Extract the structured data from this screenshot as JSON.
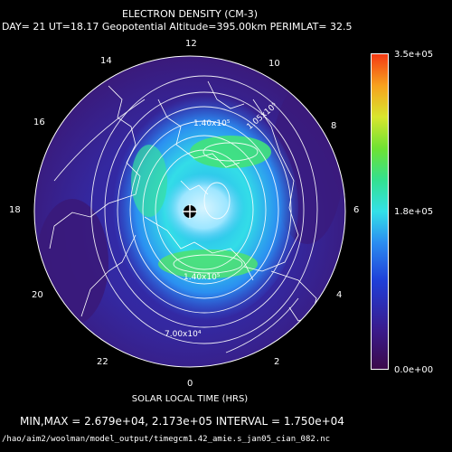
{
  "title": "ELECTRON DENSITY (CM-3)",
  "subtitle": "DAY= 21 UT=18.17 Geopotential Altitude=395.00km PERIMLAT= 32.5",
  "hours": [
    "12",
    "10",
    "8",
    "6",
    "4",
    "2",
    "0",
    "22",
    "20",
    "18",
    "16",
    "14"
  ],
  "x_axis_label": "SOLAR LOCAL TIME (HRS)",
  "contour_labels": [
    "1.40x10⁵",
    "1.40x10⁵",
    "7.00x10⁴",
    "1.05x10⁵"
  ],
  "colorbar": {
    "max_label": "3.5e+05",
    "mid_label": "1.8e+05",
    "min_label": "0.0e+00"
  },
  "stats_line": "MIN,MAX =  2.679e+04, 2.173e+05 INTERVAL =  1.750e+04",
  "file_path": "/hao/aim2/woolman/model_output/timegcm1.42_amie.s_jan05_cian_082.nc",
  "colors": {
    "low": "#3a1a8a",
    "mid": "#33e0e8",
    "high": "#6ee233",
    "max": "#f43a14"
  }
}
